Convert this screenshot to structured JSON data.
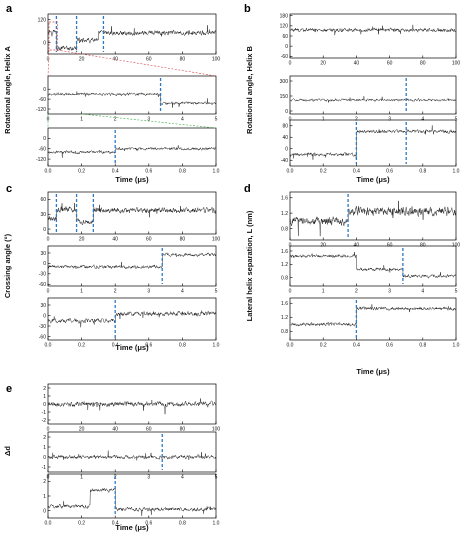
{
  "chart_data": [
    {
      "type": "line",
      "panel": "a",
      "ylabel": "Rotational angle, Helix A",
      "xlabel": "Time (μs)",
      "subplots": [
        {
          "xlim": [
            0,
            100
          ],
          "xticks": [
            "0",
            "20",
            "40",
            "60",
            "80",
            "100"
          ],
          "ylim": [
            -60,
            150
          ],
          "yticks": [
            "120",
            "0",
            "-120"
          ],
          "ytick_values": [
            120,
            0,
            -120
          ],
          "markers_x": [
            5,
            17,
            33
          ],
          "levels": [
            [
              0,
              5,
              60
            ],
            [
              5,
              17,
              -30
            ],
            [
              17,
              30,
              10
            ],
            [
              30,
              100,
              50
            ]
          ],
          "noise": 20
        },
        {
          "xlim": [
            0,
            5
          ],
          "xticks": [
            "0",
            "1",
            "2",
            "3",
            "4",
            "5"
          ],
          "ylim": [
            -150,
            80
          ],
          "yticks": [
            "0",
            "-60",
            "-120"
          ],
          "ytick_values": [
            0,
            -60,
            -120
          ],
          "markers_x": [
            3.35
          ],
          "levels": [
            [
              0,
              3.35,
              -30
            ],
            [
              3.35,
              5,
              -85
            ]
          ],
          "noise": 14
        },
        {
          "xlim": [
            0,
            1
          ],
          "xticks": [
            "0.0",
            "0.2",
            "0.4",
            "0.6",
            "0.8",
            "1.0"
          ],
          "ylim": [
            -160,
            60
          ],
          "yticks": [
            "0",
            "-60",
            "-120"
          ],
          "ytick_values": [
            0,
            -60,
            -120
          ],
          "markers_x": [
            0.4
          ],
          "levels": [
            [
              0,
              0.4,
              -80
            ],
            [
              0.4,
              1,
              -60
            ]
          ],
          "noise": 14
        }
      ]
    },
    {
      "type": "line",
      "panel": "b",
      "ylabel": "Rotational angle, Helix B",
      "xlabel": "Time (μs)",
      "subplots": [
        {
          "xlim": [
            0,
            100
          ],
          "xticks": [
            "0",
            "20",
            "40",
            "60",
            "80",
            "100"
          ],
          "ylim": [
            -70,
            190
          ],
          "yticks": [
            "180",
            "120",
            "60",
            "0",
            "-60"
          ],
          "ytick_values": [
            180,
            120,
            60,
            0,
            -60
          ],
          "markers_x": [],
          "levels": [
            [
              0,
              100,
              95
            ]
          ],
          "noise": 18
        },
        {
          "xlim": [
            0,
            5
          ],
          "xticks": [
            "0",
            "1",
            "2",
            "3",
            "4",
            "5"
          ],
          "ylim": [
            -30,
            350
          ],
          "yticks": [
            "300",
            "150",
            "0"
          ],
          "ytick_values": [
            300,
            150,
            0
          ],
          "markers_x": [
            3.5
          ],
          "levels": [
            [
              0,
              5,
              110
            ]
          ],
          "noise": 20
        },
        {
          "xlim": [
            0,
            1
          ],
          "xticks": [
            "0.0",
            "0.2",
            "0.4",
            "0.6",
            "0.8",
            "1.0"
          ],
          "ylim": [
            -60,
            100
          ],
          "yticks": [
            "80",
            "40",
            "0",
            "-40"
          ],
          "ytick_values": [
            80,
            40,
            0,
            -40
          ],
          "markers_x": [
            0.4,
            0.7
          ],
          "levels": [
            [
              0,
              0.4,
              -20
            ],
            [
              0.4,
              1,
              60
            ]
          ],
          "noise": 10
        }
      ]
    },
    {
      "type": "line",
      "panel": "c",
      "ylabel": "Crossing angle (°)",
      "xlabel": "Time (μs)",
      "subplots": [
        {
          "xlim": [
            0,
            100
          ],
          "xticks": [
            "0",
            "20",
            "40",
            "60",
            "80",
            "100"
          ],
          "ylim": [
            -10,
            75
          ],
          "yticks": [
            "60",
            "30",
            "0"
          ],
          "ytick_values": [
            60,
            30,
            0
          ],
          "markers_x": [
            5,
            17,
            27
          ],
          "levels": [
            [
              0,
              5,
              20
            ],
            [
              5,
              17,
              40
            ],
            [
              17,
              27,
              15
            ],
            [
              27,
              100,
              38
            ]
          ],
          "noise": 9
        },
        {
          "xlim": [
            0,
            5
          ],
          "xticks": [
            "0",
            "1",
            "2",
            "3",
            "4",
            "5"
          ],
          "ylim": [
            -65,
            50
          ],
          "yticks": [
            "30",
            "0",
            "-30",
            "-60"
          ],
          "ytick_values": [
            30,
            0,
            -30,
            -60
          ],
          "markers_x": [
            3.4
          ],
          "levels": [
            [
              0,
              3.4,
              -10
            ],
            [
              3.4,
              5,
              25
            ]
          ],
          "noise": 8
        },
        {
          "xlim": [
            0,
            1
          ],
          "xticks": [
            "0.0",
            "0.2",
            "0.4",
            "0.6",
            "0.8",
            "1.0"
          ],
          "ylim": [
            -70,
            50
          ],
          "yticks": [
            "30",
            "0",
            "-30",
            "-60"
          ],
          "ytick_values": [
            30,
            0,
            -30,
            -60
          ],
          "markers_x": [
            0.4
          ],
          "levels": [
            [
              0,
              0.4,
              -15
            ],
            [
              0.4,
              1,
              5
            ]
          ],
          "noise": 10
        }
      ]
    },
    {
      "type": "line",
      "panel": "d",
      "ylabel": "Lateral helix separation, L (nm)",
      "xlabel": "Time (μs)",
      "subplots": [
        {
          "xlim": [
            0,
            100
          ],
          "xticks": [
            "0",
            "20",
            "40",
            "60",
            "80",
            "100"
          ],
          "ylim": [
            0.5,
            1.75
          ],
          "yticks": [
            "1.6",
            "1.2",
            "0.8"
          ],
          "ytick_values": [
            1.6,
            1.2,
            0.8
          ],
          "markers_x": [
            35
          ],
          "levels": [
            [
              0,
              35,
              1.0
            ],
            [
              35,
              100,
              1.25
            ]
          ],
          "noise": 0.18
        },
        {
          "xlim": [
            0,
            5
          ],
          "xticks": [
            "0",
            "1",
            "2",
            "3",
            "4",
            "5"
          ],
          "ylim": [
            0.55,
            1.75
          ],
          "yticks": [
            "1.6",
            "1.2",
            "0.8"
          ],
          "ytick_values": [
            1.6,
            1.2,
            0.8
          ],
          "markers_x": [
            3.4
          ],
          "levels": [
            [
              0,
              2,
              1.45
            ],
            [
              2,
              3.4,
              1.05
            ],
            [
              3.4,
              5,
              0.85
            ]
          ],
          "noise": 0.08
        },
        {
          "xlim": [
            0,
            1
          ],
          "xticks": [
            "0.0",
            "0.2",
            "0.4",
            "0.6",
            "0.8",
            "1.0"
          ],
          "ylim": [
            0.55,
            1.75
          ],
          "yticks": [
            "1.6",
            "1.2",
            "0.8"
          ],
          "ytick_values": [
            1.6,
            1.2,
            0.8
          ],
          "markers_x": [
            0.4
          ],
          "levels": [
            [
              0,
              0.4,
              1.0
            ],
            [
              0.4,
              1,
              1.45
            ]
          ],
          "noise": 0.08
        }
      ]
    },
    {
      "type": "line",
      "panel": "e",
      "ylabel": "Δd",
      "xlabel": "Time (μs)",
      "subplots": [
        {
          "xlim": [
            0,
            100
          ],
          "xticks": [
            "0",
            "20",
            "40",
            "60",
            "80",
            "100"
          ],
          "ylim": [
            -2.5,
            2.5
          ],
          "yticks": [
            "2",
            "1",
            "0",
            "-1",
            "-2"
          ],
          "ytick_values": [
            2,
            1,
            0,
            -1,
            -2
          ],
          "markers_x": [],
          "levels": [
            [
              0,
              100,
              0
            ]
          ],
          "noise": 0.5
        },
        {
          "xlim": [
            0,
            5
          ],
          "xticks": [
            "0",
            "1",
            "2",
            "3",
            "4",
            "5"
          ],
          "ylim": [
            -1.5,
            2.5
          ],
          "yticks": [
            "2",
            "1",
            "0",
            "-1"
          ],
          "ytick_values": [
            2,
            1,
            0,
            -1
          ],
          "markers_x": [
            3.4
          ],
          "levels": [
            [
              0,
              5,
              0
            ]
          ],
          "noise": 0.3
        },
        {
          "xlim": [
            0,
            1
          ],
          "xticks": [
            "0.0",
            "0.2",
            "0.4",
            "0.6",
            "0.8",
            "1.0"
          ],
          "ylim": [
            -0.5,
            2.5
          ],
          "yticks": [
            "2",
            "1",
            "0"
          ],
          "ytick_values": [
            2,
            1,
            0
          ],
          "markers_x": [
            0.4
          ],
          "levels": [
            [
              0,
              0.25,
              0.3
            ],
            [
              0.25,
              0.4,
              1.4
            ],
            [
              0.4,
              1,
              0.1
            ]
          ],
          "noise": 0.2
        }
      ]
    }
  ]
}
